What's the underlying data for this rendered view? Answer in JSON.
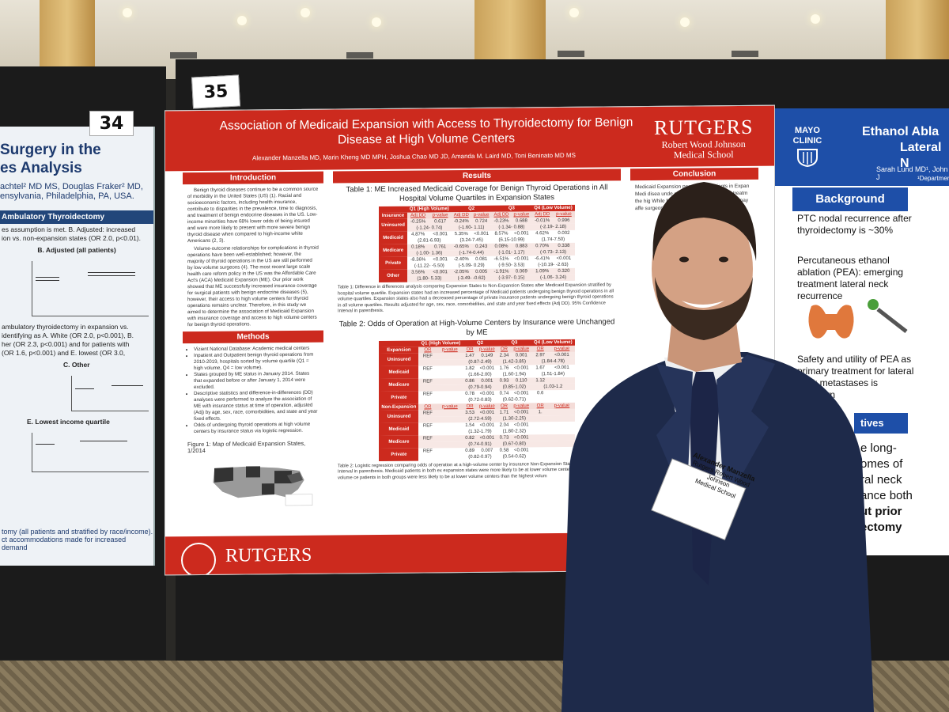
{
  "poster_left": {
    "number": "34",
    "title_line1": "Surgery in the",
    "title_line2": "es Analysis",
    "authors_line1": "achtel² MD MS, Douglas Fraker² MD,",
    "authors_line2": "ensylvania, Philadelphia, PA, USA.",
    "section_bar": "Ambulatory Thyroidectomy",
    "text1": "es assumption is met. B. Adjusted: increased",
    "text2": "ion vs. non-expansion states (OR 2.0, p<0.01).",
    "chart_b_label": "B. Adjusted (all patients)",
    "text3": "ambulatory thyroidectomy in expansion vs.",
    "text4": "identifying as A. White (OR 2.0, p<0.001), B.",
    "text5": "her (OR 2.3, p<0.001) and for patients with",
    "text6": "(OR 1.6, p<0.001) and E. lowest (OR 3.0,",
    "chart_c_label": "C. Other",
    "chart_e_label": "E. Lowest income quartile",
    "bottom1": "tomy (all patients and stratified by race/income).",
    "bottom2": "ct accommodations made for increased demand"
  },
  "poster_main": {
    "number": "35",
    "title": "Association of Medicaid Expansion with Access to Thyroidectomy for Benign Disease at High Volume Centers",
    "authors": "Alexander Manzella MD, Marin Kheng MD MPH, Joshua Chao MD JD, Amanda M. Laird MD, Toni Beninato MD MS",
    "logo_main": "RUTGERS",
    "logo_sub1": "Robert Wood Johnson",
    "logo_sub2": "Medical School",
    "intro_title": "Introduction",
    "intro_text1": "Benign thyroid diseases continue to be a common source of morbidity in the United States (US) (1). Racial and socioeconomic factors, including health insurance, contribute to disparities in the prevalence, time to diagnosis, and treatment of benign endocrine diseases in the US. Low-income minorities have 68% lower odds of being insured and were more likely to present with more severe benign thyroid disease when compared to high-income white Americans (2, 3).",
    "intro_text2": "Volume-outcome relationships for complications in thyroid operations have been well-established; however, the majority of thyroid operations in the US are still performed by low volume surgeons (4). The most recent large scale health care reform policy in the US was the Affordable Care Act's (ACA) Medicaid Expansion (ME). Our prior work showed that ME successfully increased insurance coverage for surgical patients with benign endocrine diseases (5), however, their access to high volume centers for thyroid operations remains unclear. Therefore, in this study we aimed to determine the association of Medicaid Expansion with insurance coverage and access to high volume centers for benign thyroid operations.",
    "methods_title": "Methods",
    "methods_items": [
      "Vizient National Database: Academic medical centers",
      "Inpatient and Outpatient benign thyroid operations from 2010-2019, hospitals sorted by volume quartile (Q1 = high volume, Q4 = low volume).",
      "States grouped by ME status in January 2014. States that expanded before or after January 1, 2014 were excluded.",
      "Descriptive statistics and difference-in-differences (DD) analyses were performed to analyze the association of ME with insurance status at time of operation, adjusted (Adj) by age, sex, race, comorbidities, and state and year fixed effects.",
      "Odds of undergoing thyroid operations at high volume centers by insurance status via logistic regression."
    ],
    "figure_caption": "Figure 1: Map of Medicaid Expansion States, 1/2014",
    "results_title": "Results",
    "table1_title": "Table 1: ME Increased Medicaid Coverage for Benign Thyroid Operations in All Hospital Volume Quartiles in Expansion States",
    "table1_groups": [
      "Q1 (High Volume)",
      "Q2",
      "Q3",
      "Q4 (Low Volume)"
    ],
    "table1_sub": [
      "Insurance",
      "Adj DD",
      "p-value",
      "Adj DD",
      "p-value",
      "Adj DD",
      "p-value",
      "Adj DD",
      "p-value"
    ],
    "table1_rows": [
      {
        "label": "Uninsured",
        "cells": [
          "-0.25%",
          "0.617",
          "-0.24%",
          "0.724",
          "-0.23%",
          "0.688",
          "-0.01%",
          "0.996"
        ],
        "ci": [
          "(-1.24- 0.74)",
          "(-1.60- 1.11)",
          "(-1.34- 0.88)",
          "(-2.19- 2.18)"
        ]
      },
      {
        "label": "Medicaid",
        "cells": [
          "4.87%",
          "<0.001",
          "5.35%",
          "<0.001",
          "8.57%",
          "<0.001",
          "4.62%",
          "0.002"
        ],
        "ci": [
          "(2.81-6.93)",
          "(3.24-7.45)",
          "(6.15-10.99)",
          "(1.74-7.50)"
        ]
      },
      {
        "label": "Medicare",
        "cells": [
          "0.18%",
          "0.761",
          "-0.65%",
          "0.243",
          "0.08%",
          "0.883",
          "0.70%",
          "0.338"
        ],
        "ci": [
          "(-1.00- 1.36)",
          "(-1.74-0.44)",
          "(-1.01- 1.17)",
          "(-0.73- 2.13)"
        ]
      },
      {
        "label": "Private",
        "cells": [
          "-8.36%",
          "<0.001",
          "-2.40%",
          "0.081",
          "-6.51%",
          "<0.001",
          "-6.41%",
          "<0.001"
        ],
        "ci": [
          "(-11.22- -5.50)",
          "(-5.09- 0.29)",
          "(-9.50- 3.53)",
          "(-10.19- -2.63)"
        ]
      },
      {
        "label": "Other",
        "cells": [
          "3.56%",
          "<0.001",
          "-2.05%",
          "0.005",
          "-1.91%",
          "0.069",
          "1.09%",
          "0.320"
        ],
        "ci": [
          "(1.80- 5.33)",
          "(-3.49- -0.62)",
          "(-3.97- 0.15)",
          "(-1.06- 3.24)"
        ]
      }
    ],
    "table1_caption": "Table 1: Difference in differences analysis comparing Expansion States to Non-Expansion States after Medicaid Expansion stratified by hospital volume quartile. Expansion states had an increased percentage of Medicaid patients undergoing benign thyroid operations in all volume quartiles. Expansion states also had a decreased percentage of private insurance patients undergoing benign thyroid operations in all volume quartiles. Results adjusted for age, sex, race, comorbidities, and state and year fixed effects (Adj DD). 95% Confidence Interval in parenthesis.",
    "table2_title": "Table 2: Odds of Operation at High-Volume Centers by Insurance were Unchanged by ME",
    "table2_groups": [
      "Q1 (High Volume)",
      "Q2",
      "Q3",
      "Q4 (Low Volume)"
    ],
    "table2_sub_exp": [
      "Expansion",
      "OR",
      "p-value",
      "OR",
      "p-value",
      "OR",
      "p-value",
      "OR",
      "p-value"
    ],
    "table2_rows_exp": [
      {
        "label": "Uninsured",
        "cells": [
          "REF",
          "",
          "1.47",
          "0.149",
          "2.34",
          "0.001",
          "2.97",
          "<0.001"
        ],
        "ci": [
          "",
          "(0.87-2.49)",
          "(1.42-3.85)",
          "(1.84-4.78)"
        ]
      },
      {
        "label": "Medicaid",
        "cells": [
          "REF",
          "",
          "1.82",
          "<0.001",
          "1.76",
          "<0.001",
          "1.67",
          "<0.001"
        ],
        "ci": [
          "",
          "(1.66-2.00)",
          "(1.60-1.94)",
          "(1.51-1.84)"
        ]
      },
      {
        "label": "Medicare",
        "cells": [
          "REF",
          "",
          "0.86",
          "0.001",
          "0.93",
          "0.110",
          "1.12",
          ""
        ],
        "ci": [
          "",
          "(0.79-0.94)",
          "(0.85-1.02)",
          "(1.03-1.2"
        ]
      },
      {
        "label": "Private",
        "cells": [
          "REF",
          "",
          "0.78",
          "<0.001",
          "0.74",
          "<0.001",
          "0.6",
          ""
        ],
        "ci": [
          "",
          "(0.72-0.83)",
          "(0.62-0.71)",
          ""
        ]
      }
    ],
    "table2_sub_non": [
      "Non-Expansion",
      "OR",
      "p-value",
      "OR",
      "p-value",
      "OR",
      "p-value",
      "OR",
      "p-value"
    ],
    "table2_rows_non": [
      {
        "label": "Uninsured",
        "cells": [
          "REF",
          "",
          "3.53",
          "<0.001",
          "1.71",
          "<0.001",
          "1.",
          ""
        ],
        "ci": [
          "",
          "(2.72-4.59)",
          "(1.30-2.25)",
          ""
        ]
      },
      {
        "label": "Medicaid",
        "cells": [
          "REF",
          "",
          "1.54",
          "<0.001",
          "2.04",
          "<0.001",
          "",
          ""
        ],
        "ci": [
          "",
          "(1.32-1.79)",
          "(1.80-2.32)",
          ""
        ]
      },
      {
        "label": "Medicare",
        "cells": [
          "REF",
          "",
          "0.82",
          "<0.001",
          "0.73",
          "<0.001",
          "",
          ""
        ],
        "ci": [
          "",
          "(0.74-0.91)",
          "(0.67-0.80)",
          ""
        ]
      },
      {
        "label": "Private",
        "cells": [
          "REF",
          "",
          "0.89",
          "0.007",
          "0.58",
          "<0.001",
          "",
          ""
        ],
        "ci": [
          "",
          "(0.82-0.97)",
          "(0.54-0.62)",
          ""
        ]
      }
    ],
    "table2_caption": "Table 2: Logistic regression comparing odds of operation at a high-volume center by insurance Non-Expansion States. 95% Confidence Interval in parenthesis. Medicaid patients in both ex expansion states were more likely to be at lower volume centers than the highest volume ce patients in both groups were less likely to be at lower volume centers than the highest volum",
    "conclusion_title": "Conclusion",
    "conclusion_text": "Medicaid Expansion percentage patients in Expan Medi disea unde cente in bot Privat diseas treatm the hig While ME Medicaid patients, ther that may affe surgeons",
    "footer_logo": "RUTGERS"
  },
  "poster_right": {
    "logo_line1": "MAYO",
    "logo_line2": "CLINIC",
    "title_line1": "Ethanol Abla",
    "title_line2": "Lateral N",
    "authors": "Sarah Lund MD¹, John J",
    "dept": "¹Department",
    "background_title": "Background",
    "bullet1": "PTC nodal recurrence after thyroidectomy is ~30%",
    "bullet2": "Percutaneous ethanol ablation (PEA): emerging treatment lateral neck recurrence",
    "bullet3": "Safety and utility of PEA as primary treatment for lateral neck metastases is unknown",
    "section2": "tives",
    "big1": "e long-",
    "big2": "omes of",
    "big3": "ral neck",
    "big4": "ance both",
    "big5": "ut prior",
    "big6": "ectomy"
  },
  "badge": {
    "name": "Alexander Manzella",
    "affil1": "Rutgers Robert Wood Johnson",
    "affil2": "Medical School"
  }
}
